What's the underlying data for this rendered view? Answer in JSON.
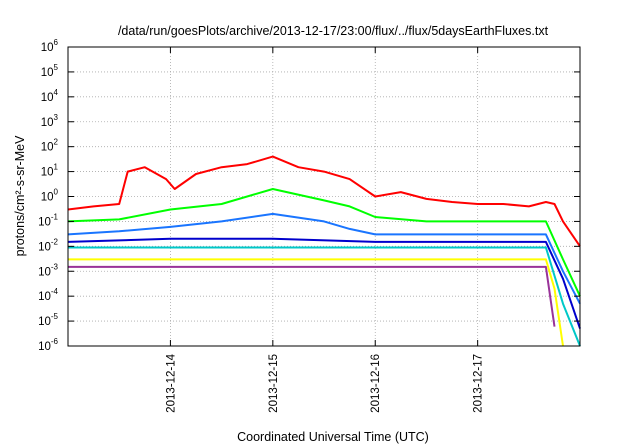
{
  "chart_data": {
    "type": "line",
    "title": "/data/run/goesPlots/archive/2013-12-17/23:00/flux/../flux/5daysEarthFluxes.txt",
    "xlabel": "Coordinated Universal Time (UTC)",
    "ylabel": "protons/cm²-s-sr-MeV",
    "y_scale": "log",
    "ylim": [
      1e-06,
      1000000.0
    ],
    "xlim": [
      "2013-12-13 00:00",
      "2013-12-17 23:59"
    ],
    "grid": true,
    "legend": "none",
    "x_ticks": [
      "2013-12-14",
      "2013-12-15",
      "2013-12-16",
      "2013-12-17"
    ],
    "y_ticks": [
      {
        "base": "10",
        "exp": "-6"
      },
      {
        "base": "10",
        "exp": "-5"
      },
      {
        "base": "10",
        "exp": "-4"
      },
      {
        "base": "10",
        "exp": "-3"
      },
      {
        "base": "10",
        "exp": "-2"
      },
      {
        "base": "10",
        "exp": "-1"
      },
      {
        "base": "10",
        "exp": "0"
      },
      {
        "base": "10",
        "exp": "1"
      },
      {
        "base": "10",
        "exp": "2"
      },
      {
        "base": "10",
        "exp": "3"
      },
      {
        "base": "10",
        "exp": "4"
      },
      {
        "base": "10",
        "exp": "5"
      },
      {
        "base": "10",
        "exp": "6"
      }
    ],
    "series": [
      {
        "color": "#ff0000",
        "x": [
          "2013-12-13 00:00",
          "2013-12-13 06:00",
          "2013-12-13 12:00",
          "2013-12-13 14:00",
          "2013-12-13 18:00",
          "2013-12-13 23:00",
          "2013-12-14 01:00",
          "2013-12-14 06:00",
          "2013-12-14 12:00",
          "2013-12-14 18:00",
          "2013-12-15 00:00",
          "2013-12-15 06:00",
          "2013-12-15 12:00",
          "2013-12-15 18:00",
          "2013-12-16 00:00",
          "2013-12-16 06:00",
          "2013-12-16 12:00",
          "2013-12-16 18:00",
          "2013-12-17 00:00",
          "2013-12-17 06:00",
          "2013-12-17 12:00",
          "2013-12-17 16:00",
          "2013-12-17 18:00",
          "2013-12-17 20:00",
          "2013-12-17 23:59"
        ],
        "values": [
          0.3,
          0.4,
          0.5,
          10,
          15,
          5,
          2,
          8,
          15,
          20,
          40,
          15,
          10,
          5,
          1,
          1.5,
          0.8,
          0.6,
          0.5,
          0.5,
          0.4,
          0.6,
          0.5,
          0.1,
          0.01
        ]
      },
      {
        "color": "#00ff00",
        "x": [
          "2013-12-13 00:00",
          "2013-12-13 12:00",
          "2013-12-14 00:00",
          "2013-12-14 12:00",
          "2013-12-15 00:00",
          "2013-12-15 12:00",
          "2013-12-15 18:00",
          "2013-12-16 00:00",
          "2013-12-16 12:00",
          "2013-12-17 00:00",
          "2013-12-17 16:00",
          "2013-12-17 20:00",
          "2013-12-17 23:59"
        ],
        "values": [
          0.1,
          0.12,
          0.3,
          0.5,
          2,
          0.7,
          0.4,
          0.15,
          0.1,
          0.1,
          0.1,
          0.003,
          0.0001
        ]
      },
      {
        "color": "#1a75ff",
        "x": [
          "2013-12-13 00:00",
          "2013-12-13 12:00",
          "2013-12-14 00:00",
          "2013-12-14 12:00",
          "2013-12-15 00:00",
          "2013-12-15 12:00",
          "2013-12-15 18:00",
          "2013-12-16 00:00",
          "2013-12-16 12:00",
          "2013-12-17 00:00",
          "2013-12-17 16:00",
          "2013-12-17 20:00",
          "2013-12-17 23:59"
        ],
        "values": [
          0.03,
          0.04,
          0.06,
          0.1,
          0.2,
          0.1,
          0.05,
          0.03,
          0.03,
          0.03,
          0.03,
          0.001,
          5e-05
        ]
      },
      {
        "color": "#0000cc",
        "x": [
          "2013-12-13 00:00",
          "2013-12-14 00:00",
          "2013-12-15 00:00",
          "2013-12-16 00:00",
          "2013-12-17 00:00",
          "2013-12-17 16:00",
          "2013-12-17 20:00",
          "2013-12-17 23:59"
        ],
        "values": [
          0.015,
          0.02,
          0.02,
          0.015,
          0.015,
          0.015,
          0.0005,
          5e-06
        ]
      },
      {
        "color": "#00c8c8",
        "x": [
          "2013-12-13 00:00",
          "2013-12-14 00:00",
          "2013-12-15 00:00",
          "2013-12-16 00:00",
          "2013-12-17 00:00",
          "2013-12-17 16:00",
          "2013-12-17 20:00",
          "2013-12-17 23:59"
        ],
        "values": [
          0.009,
          0.009,
          0.009,
          0.009,
          0.009,
          0.009,
          5e-05,
          1e-06
        ]
      },
      {
        "color": "#ffff00",
        "x": [
          "2013-12-13 00:00",
          "2013-12-14 00:00",
          "2013-12-15 00:00",
          "2013-12-16 00:00",
          "2013-12-17 00:00",
          "2013-12-17 16:00",
          "2013-12-17 18:00",
          "2013-12-17 20:00"
        ],
        "values": [
          0.003,
          0.003,
          0.003,
          0.003,
          0.003,
          0.003,
          0.0002,
          1e-06
        ]
      },
      {
        "color": "#993399",
        "x": [
          "2013-12-13 00:00",
          "2013-12-14 00:00",
          "2013-12-15 00:00",
          "2013-12-16 00:00",
          "2013-12-17 00:00",
          "2013-12-17 16:00",
          "2013-12-17 18:00"
        ],
        "values": [
          0.0015,
          0.0015,
          0.0015,
          0.0015,
          0.0015,
          0.0015,
          6e-06
        ]
      }
    ]
  }
}
